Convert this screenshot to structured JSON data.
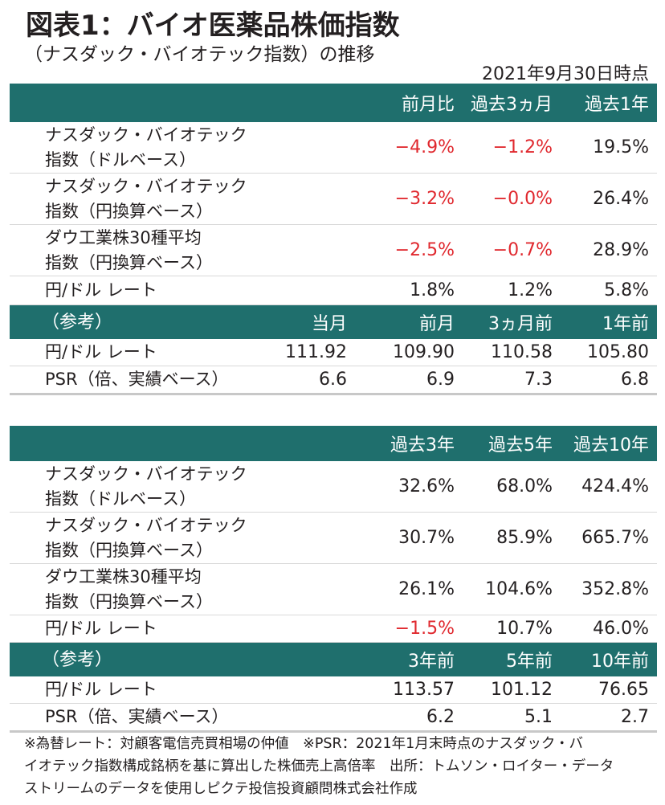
{
  "title": "図表1：バイオ医薬品株価指数",
  "subtitle": "（ナスダック・バイオテック指数）の推移",
  "as_of": "2021年9月30日時点",
  "table1": {
    "headers": [
      "前月比",
      "過去3ヵ月",
      "過去1年"
    ],
    "rows": [
      {
        "label_1": "ナスダック・バイオテック",
        "label_2": "指数（ドルベース）",
        "values": [
          "−4.9%",
          "−1.2%",
          "19.5%"
        ]
      },
      {
        "label_1": "ナスダック・バイオテック",
        "label_2": "指数（円換算ベース）",
        "values": [
          "−3.2%",
          "−0.0%",
          "26.4%"
        ]
      },
      {
        "label_1": "ダウ工業株30種平均",
        "label_2": "指数（円換算ベース）",
        "values": [
          "−2.5%",
          "−0.7%",
          "28.9%"
        ]
      },
      {
        "label_1": "円/ドル レート",
        "values": [
          "1.8%",
          "1.2%",
          "5.8%"
        ]
      }
    ],
    "ref_header": {
      "label": "（参考）",
      "cols": [
        "当月",
        "前月",
        "3ヵ月前",
        "1年前"
      ]
    },
    "ref_rows": [
      {
        "label": "円/ドル レート",
        "values": [
          "111.92",
          "109.90",
          "110.58",
          "105.80"
        ]
      },
      {
        "label": "PSR（倍、実績ベース）",
        "values": [
          "6.6",
          "6.9",
          "7.3",
          "6.8"
        ]
      }
    ]
  },
  "table2": {
    "headers": [
      "過去3年",
      "過去5年",
      "過去10年"
    ],
    "rows": [
      {
        "label_1": "ナスダック・バイオテック",
        "label_2": "指数（ドルベース）",
        "values": [
          "32.6%",
          "68.0%",
          "424.4%"
        ]
      },
      {
        "label_1": "ナスダック・バイオテック",
        "label_2": "指数（円換算ベース）",
        "values": [
          "30.7%",
          "85.9%",
          "665.7%"
        ]
      },
      {
        "label_1": "ダウ工業株30種平均",
        "label_2": "指数（円換算ベース）",
        "values": [
          "26.1%",
          "104.6%",
          "352.8%"
        ]
      },
      {
        "label_1": "円/ドル レート",
        "values": [
          "−1.5%",
          "10.7%",
          "46.0%"
        ]
      }
    ],
    "ref_header": {
      "label": "（参考）",
      "cols": [
        "3年前",
        "5年前",
        "10年前"
      ]
    },
    "ref_rows": [
      {
        "label": "円/ドル レート",
        "values": [
          "113.57",
          "101.12",
          "76.65"
        ]
      },
      {
        "label": "PSR（倍、実績ベース）",
        "values": [
          "6.2",
          "5.1",
          "2.7"
        ]
      }
    ]
  },
  "footnote": {
    "line1": "※為替レート：対顧客電信売買相場の仲値　※PSR：2021年1月末時点のナスダック・バ",
    "line2": "イオテック指数構成銘柄を基に算出した株価売上高倍率　出所：トムソン・ロイター・データ",
    "line3": "ストリームのデータを使用しピクテ投信投資顧問株式会社作成"
  },
  "colors": {
    "header_band": "#1f6f6d",
    "negative": "#e0282e",
    "text": "#231f20"
  }
}
